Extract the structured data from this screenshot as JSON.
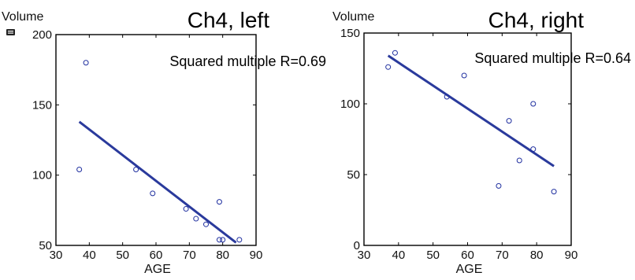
{
  "chart_data": [
    {
      "type": "scatter",
      "title": "Ch4, left",
      "xlabel": "AGE",
      "ylabel": "Volume",
      "annotation": "Squared multiple R=0.69",
      "xlim": [
        30,
        90
      ],
      "ylim": [
        50,
        200
      ],
      "xticks": [
        30,
        40,
        50,
        60,
        70,
        80,
        90
      ],
      "yticks": [
        50,
        100,
        150,
        200
      ],
      "points": {
        "x": [
          37,
          39,
          54,
          59,
          69,
          72,
          75,
          79,
          79,
          80,
          85
        ],
        "y": [
          104,
          180,
          104,
          87,
          76,
          69,
          65,
          81,
          54,
          54,
          54
        ]
      },
      "fit_line": {
        "x": [
          37,
          84
        ],
        "y": [
          138,
          52
        ]
      },
      "colors": {
        "points": "#1f2f9f",
        "fit": "#2a3a9c"
      }
    },
    {
      "type": "scatter",
      "title": "Ch4, right",
      "xlabel": "AGE",
      "ylabel": "Volume",
      "annotation": "Squared multiple R=0.64",
      "xlim": [
        30,
        90
      ],
      "ylim": [
        0,
        150
      ],
      "xticks": [
        30,
        40,
        50,
        60,
        70,
        80,
        90
      ],
      "yticks": [
        0,
        50,
        100,
        150
      ],
      "points": {
        "x": [
          37,
          39,
          54,
          59,
          69,
          72,
          75,
          79,
          79,
          85
        ],
        "y": [
          126,
          136,
          105,
          120,
          42,
          88,
          60,
          100,
          68,
          38
        ]
      },
      "fit_line": {
        "x": [
          37,
          85
        ],
        "y": [
          134,
          56
        ]
      },
      "colors": {
        "points": "#1f2f9f",
        "fit": "#2a3a9c"
      }
    }
  ],
  "icons": {
    "corner_icon": "menu-icon"
  }
}
